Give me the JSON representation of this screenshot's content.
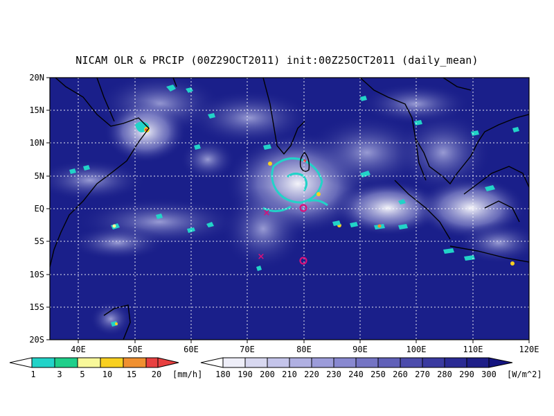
{
  "title": "NICAM OLR & PRCIP (00Z29OCT2011) init:00Z25OCT2011 (daily_mean)",
  "map": {
    "lon_range": [
      35,
      120
    ],
    "lat_range": [
      -20,
      20
    ],
    "lat_ticks": [
      "20N",
      "15N",
      "10N",
      "5N",
      "EQ",
      "5S",
      "10S",
      "15S",
      "20S"
    ],
    "lon_ticks": [
      "40E",
      "50E",
      "60E",
      "70E",
      "80E",
      "90E",
      "100E",
      "110E",
      "120E"
    ],
    "grid": "dashed every 10° lon, 5° lat",
    "background_color": "#1a1f8a"
  },
  "markers": [
    {
      "symbol": "x",
      "lon": 73,
      "lat": -1,
      "color": "#d8107a"
    },
    {
      "symbol": "o",
      "lon": 80,
      "lat": 0,
      "color": "#d8107a"
    },
    {
      "symbol": "x",
      "lon": 72.5,
      "lat": -7.5,
      "color": "#d8107a"
    },
    {
      "symbol": "o",
      "lon": 80,
      "lat": -8,
      "color": "#d8107a"
    }
  ],
  "precip_colorbar": {
    "labels": [
      "1",
      "3",
      "5",
      "10",
      "15",
      "20"
    ],
    "unit": "[mm/h]",
    "colors": [
      "#22d3c8",
      "#1fcf8a",
      "#f8f89a",
      "#f8d020",
      "#f09030",
      "#e84040"
    ]
  },
  "olr_colorbar": {
    "labels": [
      "180",
      "190",
      "200",
      "210",
      "220",
      "230",
      "240",
      "250",
      "260",
      "270",
      "280",
      "290",
      "300"
    ],
    "unit": "[W/m^2]",
    "colors": [
      "#eeeef8",
      "#d8d8f0",
      "#c4c4ea",
      "#b0b0e2",
      "#9c9cda",
      "#8888d0",
      "#7474c4",
      "#6060b8",
      "#4c4cac",
      "#3a3aa0",
      "#2a2a94",
      "#1e1e88",
      "#141480"
    ]
  }
}
